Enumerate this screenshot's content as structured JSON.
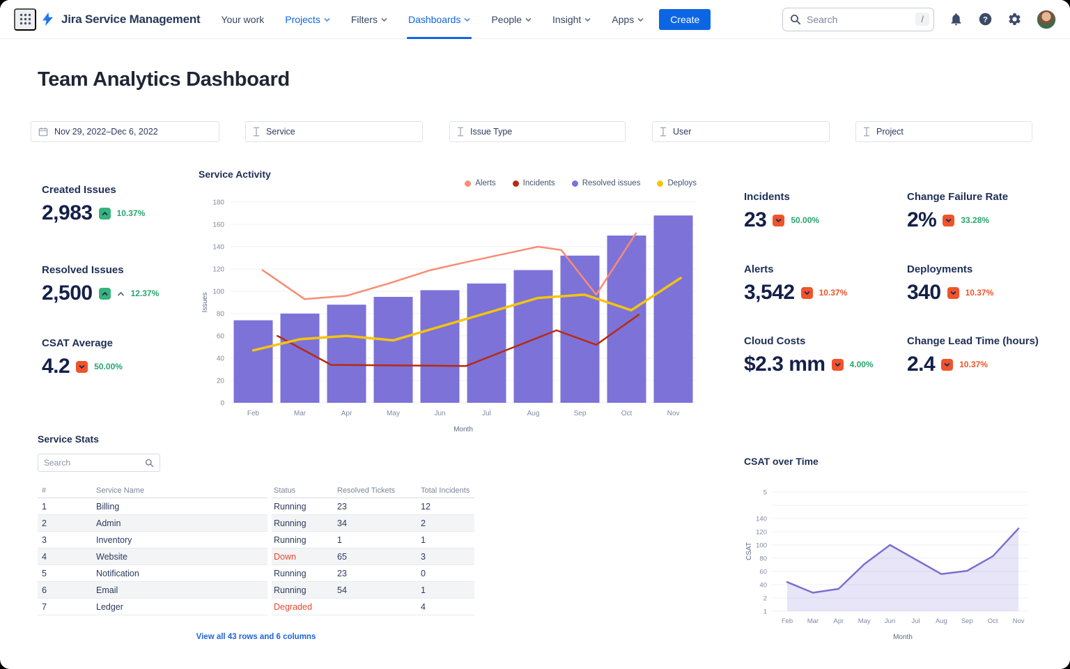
{
  "header": {
    "brand": "Jira Service Management",
    "nav": [
      {
        "label": "Your work",
        "caret": false,
        "state": "default"
      },
      {
        "label": "Projects",
        "caret": true,
        "state": "accent"
      },
      {
        "label": "Filters",
        "caret": true,
        "state": "default"
      },
      {
        "label": "Dashboards",
        "caret": true,
        "state": "active"
      },
      {
        "label": "People",
        "caret": true,
        "state": "default"
      },
      {
        "label": "Insight",
        "caret": true,
        "state": "default"
      },
      {
        "label": "Apps",
        "caret": true,
        "state": "default"
      }
    ],
    "create_label": "Create",
    "search": {
      "placeholder": "Search",
      "shortcut_hint": "/"
    }
  },
  "page_title": "Team Analytics Dashboard",
  "filters": [
    {
      "icon": "calendar-icon",
      "label": "Nov 29, 2022–Dec 6, 2022"
    },
    {
      "icon": "filter-icon",
      "label": "Service"
    },
    {
      "icon": "filter-icon",
      "label": "Issue Type"
    },
    {
      "icon": "filter-icon",
      "label": "User"
    },
    {
      "icon": "filter-icon",
      "label": "Project"
    }
  ],
  "kpis_left": [
    {
      "label": "Created Issues",
      "value": "2,983",
      "direction": "up",
      "badge_color": "#36B37E",
      "delta": "10.37%",
      "delta_color": "#27A56F"
    },
    {
      "label": "Resolved Issues",
      "value": "2,500",
      "direction": "up",
      "badge_color": "#36B37E",
      "delta": "12.37%",
      "delta_color": "#27A56F"
    },
    {
      "label": "CSAT Average",
      "value": "4.2",
      "direction": "down",
      "badge_color": "#F1532B",
      "delta": "50.00%",
      "delta_color": "#27A56F"
    }
  ],
  "kpis_right": [
    {
      "label": "Incidents",
      "value": "23",
      "direction": "down",
      "badge_color": "#F1532B",
      "delta": "50.00%",
      "delta_color": "#27A56F"
    },
    {
      "label": "Change Failure Rate",
      "value": "2%",
      "direction": "down",
      "badge_color": "#F1532B",
      "delta": "33.28%",
      "delta_color": "#27A56F"
    },
    {
      "label": "Alerts",
      "value": "3,542",
      "direction": "down",
      "badge_color": "#F1532B",
      "delta": "10.37%",
      "delta_color": "#F1532B"
    },
    {
      "label": "Deployments",
      "value": "340",
      "direction": "down",
      "badge_color": "#F1532B",
      "delta": "10.37%",
      "delta_color": "#F1532B"
    },
    {
      "label": "Cloud Costs",
      "value": "$2.3 mm",
      "direction": "down",
      "badge_color": "#F1532B",
      "delta": "4.00%",
      "delta_color": "#27A56F"
    },
    {
      "label": "Change Lead Time (hours)",
      "value": "2.4",
      "direction": "down",
      "badge_color": "#F1532B",
      "delta": "10.37%",
      "delta_color": "#F1532B"
    }
  ],
  "service_stats": {
    "title": "Service Stats",
    "search_placeholder": "Search",
    "columns": [
      "#",
      "Service Name",
      "Status",
      "Resolved Tickets",
      "Total Incidents"
    ],
    "rows": [
      {
        "num": "1",
        "name": "Billing",
        "status": "Running",
        "status_color": "#2B3A5C",
        "resolved": "23",
        "incidents": "12"
      },
      {
        "num": "2",
        "name": "Admin",
        "status": "Running",
        "status_color": "#2B3A5C",
        "resolved": "34",
        "incidents": "2"
      },
      {
        "num": "3",
        "name": "Inventory",
        "status": "Running",
        "status_color": "#2B3A5C",
        "resolved": "1",
        "incidents": "1"
      },
      {
        "num": "4",
        "name": "Website",
        "status": "Down",
        "status_color": "#E5472D",
        "resolved": "65",
        "incidents": "3"
      },
      {
        "num": "5",
        "name": "Notification",
        "status": "Running",
        "status_color": "#2B3A5C",
        "resolved": "23",
        "incidents": "0"
      },
      {
        "num": "6",
        "name": "Email",
        "status": "Running",
        "status_color": "#2B3A5C",
        "resolved": "54",
        "incidents": "1"
      },
      {
        "num": "7",
        "name": "Ledger",
        "status": "Degraded",
        "status_color": "#E5472D",
        "resolved": "",
        "incidents": "4"
      }
    ],
    "footer_link": "View all 43 rows and 6 columns"
  },
  "chart_data": [
    {
      "id": "service_activity",
      "type": "bar+line",
      "title": "Service Activity",
      "xlabel": "Month",
      "ylabel": "Issues",
      "categories": [
        "Feb",
        "Mar",
        "Apr",
        "May",
        "Jun",
        "Jul",
        "Aug",
        "Sep",
        "Oct",
        "Nov"
      ],
      "ylim": [
        0,
        180
      ],
      "yticks": [
        0,
        20,
        40,
        60,
        80,
        100,
        120,
        140,
        160,
        180
      ],
      "grid": true,
      "legend_position": "top-right",
      "legend": [
        {
          "name": "Alerts",
          "color": "#F98C72"
        },
        {
          "name": "Incidents",
          "color": "#B62B10"
        },
        {
          "name": "Resolved issues",
          "color": "#7D72D8"
        },
        {
          "name": "Deploys",
          "color": "#F5C50B"
        }
      ],
      "bars": {
        "name": "Resolved issues",
        "color": "#7D72D8",
        "values": [
          74,
          80,
          88,
          95,
          101,
          107,
          119,
          132,
          150,
          168
        ]
      },
      "lines": [
        {
          "name": "Alerts",
          "color": "#F98C72",
          "width": 2.5,
          "points": [
            [
              0.2,
              119
            ],
            [
              1.1,
              93
            ],
            [
              2.0,
              96
            ],
            [
              2.9,
              107
            ],
            [
              3.8,
              119
            ],
            [
              4.65,
              127
            ],
            [
              6.1,
              140
            ],
            [
              6.6,
              137
            ],
            [
              7.35,
              97
            ],
            [
              8.2,
              152
            ]
          ]
        },
        {
          "name": "Incidents",
          "color": "#B62B10",
          "width": 2.5,
          "points": [
            [
              0.52,
              60
            ],
            [
              1.67,
              34
            ],
            [
              4.56,
              33
            ],
            [
              6.5,
              65
            ],
            [
              7.35,
              52
            ],
            [
              8.26,
              79
            ]
          ]
        },
        {
          "name": "Deploys",
          "color": "#F5C50B",
          "width": 3.5,
          "points": [
            [
              0,
              47
            ],
            [
              1,
              57
            ],
            [
              2,
              60
            ],
            [
              3,
              56
            ],
            [
              6.1,
              94
            ],
            [
              7.1,
              97
            ],
            [
              8.1,
              83
            ],
            [
              9.16,
              112
            ]
          ]
        }
      ]
    },
    {
      "id": "csat_over_time",
      "type": "area",
      "title": "CSAT over Time",
      "xlabel": "Month",
      "ylabel": "CSAT",
      "categories": [
        "Feb",
        "Mar",
        "Apr",
        "May",
        "Jun",
        "Jul",
        "Aug",
        "Sep",
        "Oct",
        "Nov"
      ],
      "ytick_labels_bottom_to_top": [
        "1",
        "2",
        "40",
        "60",
        "80",
        "100",
        "120",
        "140",
        "",
        "5"
      ],
      "grid": true,
      "line_color": "#7C6FD0",
      "fill_color": "rgba(124,111,208,0.18)",
      "values": [
        44,
        17,
        28,
        71,
        100,
        78,
        56,
        61,
        83,
        125
      ]
    }
  ]
}
